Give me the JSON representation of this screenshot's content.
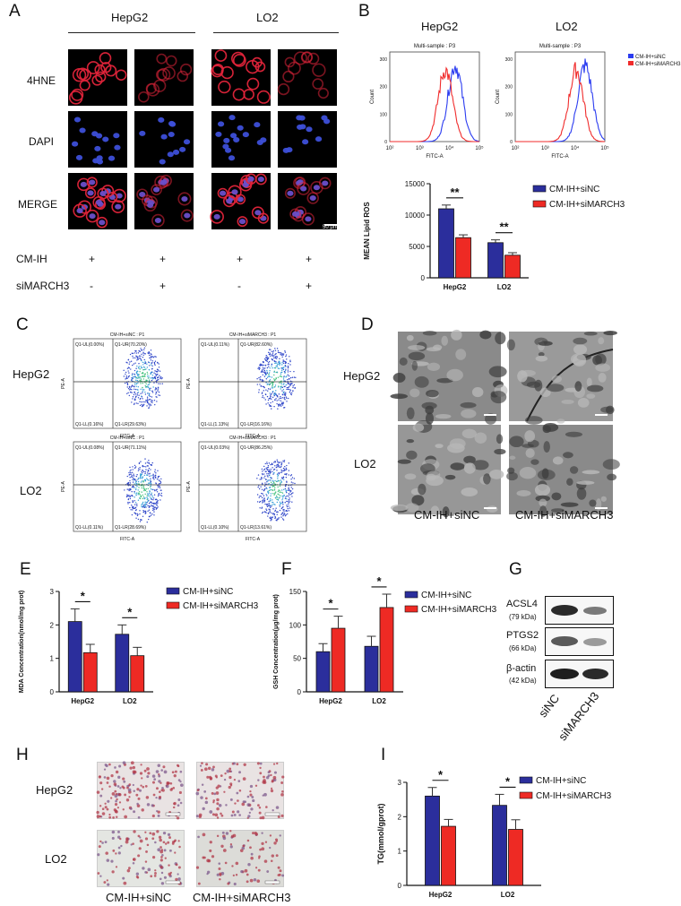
{
  "colors": {
    "blue": "#2b2e9c",
    "red": "#ee2a24",
    "flow_blue": "#2b3cf0",
    "flow_red": "#f02b2b"
  },
  "panel_letters": [
    "A",
    "B",
    "C",
    "D",
    "E",
    "F",
    "G",
    "H",
    "I"
  ],
  "panelA": {
    "groups": [
      "HepG2",
      "LO2"
    ],
    "rows": [
      "4HNE",
      "DAPI",
      "MERGE"
    ],
    "conditions": [
      {
        "label": "CM-IH",
        "values": [
          "+",
          "+",
          "+",
          "+"
        ]
      },
      {
        "label": "siMARCH3",
        "values": [
          "-",
          "+",
          "-",
          "+"
        ]
      }
    ],
    "scale_bar": "50 μm"
  },
  "panelB": {
    "histograms": [
      {
        "cell": "HepG2",
        "subtitle": "Multi-sample : P3"
      },
      {
        "cell": "LO2",
        "subtitle": "Multi-sample : P3"
      }
    ],
    "hist_ylabel": "Count",
    "hist_xlabel": "FITC-A",
    "hist_yticks": [
      "0",
      "100",
      "200",
      "300"
    ],
    "hist_xticks": [
      "10²",
      "10³",
      "10⁴",
      "10⁵"
    ],
    "hist_legend": [
      "CM-IH+siNC",
      "CM-IH+siMARCH3"
    ]
  },
  "panelC": {
    "cells": [
      "HepG2",
      "LO2"
    ],
    "plots": [
      {
        "title": "CM-IH+siNC : P1",
        "ul": "Q1-UL(0.00%)",
        "ur": "Q1-UR(70.20%)",
        "ll": "Q1-LL(0.16%)",
        "lr": "Q1-LR(29.63%)"
      },
      {
        "title": "CM-IH+siMARCH3 : P1",
        "ul": "Q1-UL(0.11%)",
        "ur": "Q1-UR(82.60%)",
        "ll": "Q1-LL(1.13%)",
        "lr": "Q1-LR(16.16%)"
      },
      {
        "title": "CM-IH+siNC : P1",
        "ul": "Q1-UL(0.08%)",
        "ur": "Q1-UR(71.11%)",
        "ll": "Q1-LL(0.11%)",
        "lr": "Q1-LR(28.69%)"
      },
      {
        "title": "CM-IH+siMARCH3 : P1",
        "ul": "Q1-UL(0.03%)",
        "ur": "Q1-UR(86.25%)",
        "ll": "Q1-LL(0.10%)",
        "lr": "Q1-LR(13.61%)"
      }
    ],
    "ylabel": "PE-A",
    "xlabel": "FITC-A"
  },
  "panelD": {
    "rows": [
      "HepG2",
      "LO2"
    ],
    "columns": [
      "CM-IH+siNC",
      "CM-IH+siMARCH3"
    ]
  },
  "panelG": {
    "rows": [
      {
        "name": "ACSL4",
        "kda": "(79 kDa)"
      },
      {
        "name": "PTGS2",
        "kda": "(66 kDa)"
      },
      {
        "name": "β-actin",
        "kda": "(42 kDa)"
      }
    ],
    "lanes": [
      "siNC",
      "siMARCH3"
    ]
  },
  "panelH": {
    "rows": [
      "HepG2",
      "LO2"
    ],
    "columns": [
      "CM-IH+siNC",
      "CM-IH+siMARCH3"
    ]
  },
  "chart_data": [
    {
      "id": "B",
      "type": "bar",
      "categories": [
        "HepG2",
        "LO2"
      ],
      "series": [
        {
          "name": "CM-IH+siNC",
          "values": [
            11000,
            5600
          ],
          "errors": [
            600,
            450
          ]
        },
        {
          "name": "CM-IH+siMARCH3",
          "values": [
            6400,
            3600
          ],
          "errors": [
            450,
            400
          ]
        }
      ],
      "ylabel": "MEAN Lipid ROS",
      "ylim": [
        0,
        15000
      ],
      "yticks": [
        0,
        5000,
        10000,
        15000
      ],
      "significance": [
        "**",
        "**"
      ],
      "legend": "right"
    },
    {
      "id": "E",
      "type": "bar",
      "categories": [
        "HepG2",
        "LO2"
      ],
      "series": [
        {
          "name": "CM-IH+siNC",
          "values": [
            2.1,
            1.72
          ],
          "errors": [
            0.38,
            0.28
          ]
        },
        {
          "name": "CM-IH+siMARCH3",
          "values": [
            1.17,
            1.08
          ],
          "errors": [
            0.25,
            0.25
          ]
        }
      ],
      "ylabel": "MDA Concentration(nmol/mg prot)",
      "ylim": [
        0,
        3
      ],
      "yticks": [
        0,
        1,
        2,
        3
      ],
      "significance": [
        "*",
        "*"
      ],
      "legend": "top-right"
    },
    {
      "id": "F",
      "type": "bar",
      "categories": [
        "HepG2",
        "LO2"
      ],
      "series": [
        {
          "name": "CM-IH+siNC",
          "values": [
            60,
            68
          ],
          "errors": [
            12,
            15
          ]
        },
        {
          "name": "CM-IH+siMARCH3",
          "values": [
            95,
            126
          ],
          "errors": [
            18,
            20
          ]
        }
      ],
      "ylabel": "GSH Concentration(μg/mg prot)",
      "ylim": [
        0,
        150
      ],
      "yticks": [
        0,
        50,
        100,
        150
      ],
      "significance": [
        "*",
        "*"
      ],
      "legend": "top-right"
    },
    {
      "id": "I",
      "type": "bar",
      "categories": [
        "HepG2",
        "LO2"
      ],
      "series": [
        {
          "name": "CM-IH+siNC",
          "values": [
            2.6,
            2.33
          ],
          "errors": [
            0.25,
            0.32
          ]
        },
        {
          "name": "CM-IH+siMARCH3",
          "values": [
            1.72,
            1.63
          ],
          "errors": [
            0.2,
            0.28
          ]
        }
      ],
      "ylabel": "TG(mmol/gprot)",
      "ylim": [
        0,
        3
      ],
      "yticks": [
        0,
        1,
        2,
        3
      ],
      "significance": [
        "*",
        "*"
      ],
      "legend": "top-right"
    }
  ]
}
